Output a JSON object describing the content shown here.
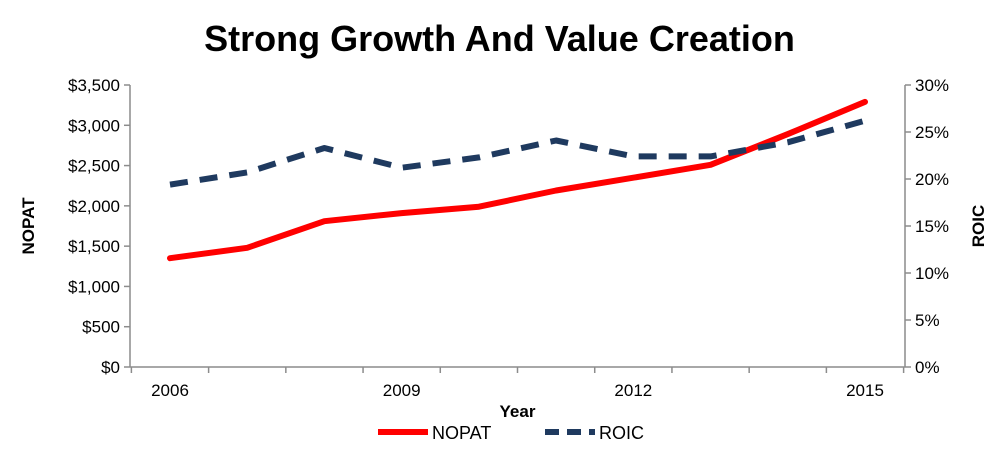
{
  "chart_data": {
    "type": "line",
    "title": "Strong Growth And Value Creation",
    "xlabel": "Year",
    "ylabel_left": "NOPAT",
    "ylabel_right": "ROIC",
    "x": [
      2006,
      2007,
      2008,
      2009,
      2010,
      2011,
      2012,
      2013,
      2014,
      2015
    ],
    "x_tick_labels": [
      "2006",
      "2009",
      "2012",
      "2015"
    ],
    "ylim_left": [
      0,
      3500
    ],
    "ylim_right": [
      0,
      30
    ],
    "y_left_ticks": [
      "$0",
      "$500",
      "$1,000",
      "$1,500",
      "$2,000",
      "$2,500",
      "$3,000",
      "$3,500"
    ],
    "y_right_ticks": [
      "0%",
      "5%",
      "10%",
      "15%",
      "20%",
      "25%",
      "30%"
    ],
    "grid": false,
    "legend_position": "bottom",
    "series": [
      {
        "name": "NOPAT",
        "axis": "left",
        "style": "solid",
        "color": "#ff0000",
        "values": [
          1350,
          1480,
          1810,
          1910,
          1990,
          2190,
          2350,
          2510,
          2890,
          3290
        ]
      },
      {
        "name": "ROIC",
        "axis": "right",
        "style": "dashed",
        "color": "#1f3a5f",
        "values": [
          19.4,
          20.7,
          23.3,
          21.2,
          22.3,
          24.1,
          22.4,
          22.4,
          23.9,
          26.2
        ]
      }
    ]
  }
}
